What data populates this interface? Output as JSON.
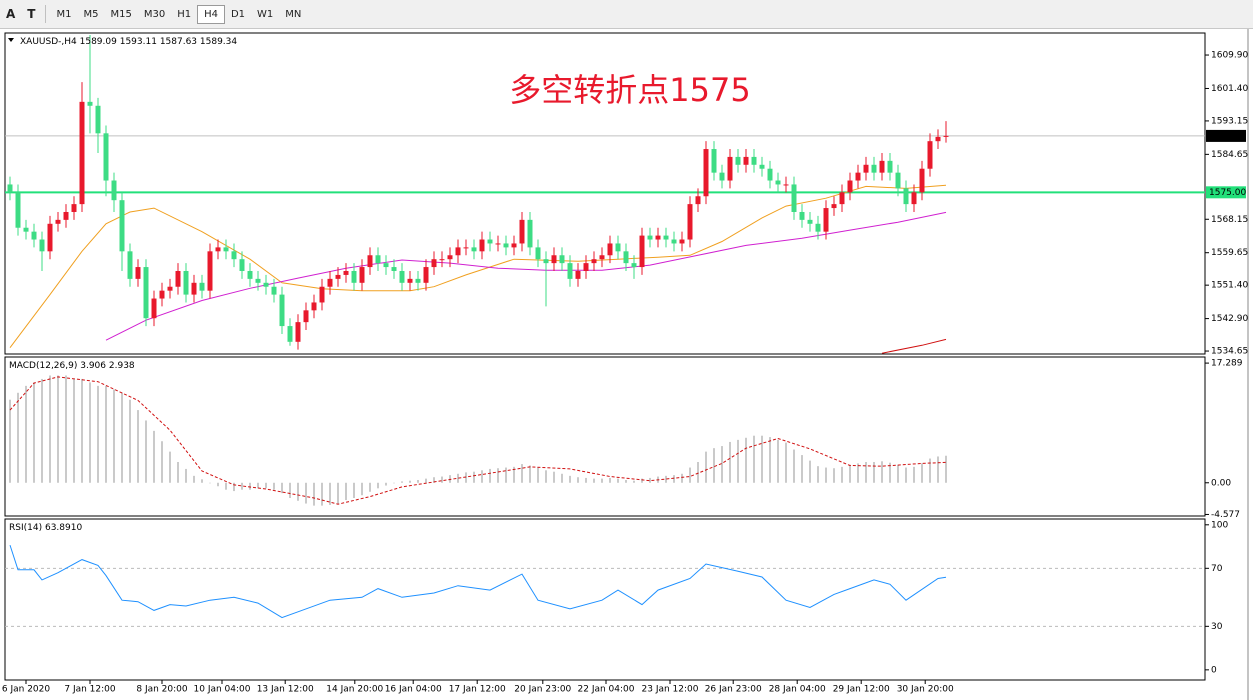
{
  "toolbar": {
    "tools": [
      "A",
      "T"
    ],
    "timeframes": [
      "M1",
      "M5",
      "M15",
      "M30",
      "H1",
      "H4",
      "D1",
      "W1",
      "MN"
    ],
    "active": "H4"
  },
  "chart_data": [
    {
      "type": "candlestick",
      "title": "XAUUSD-,H4",
      "annotation": "多空转折点1575",
      "up_color": "#e8192c",
      "down_color": "#3ddc84",
      "xlim": [
        -0.625,
        149.375
      ],
      "ylim": [
        1533.9,
        1615.5
      ],
      "yticks": [
        {
          "value": 1609.9,
          "label": "1609.90"
        },
        {
          "value": 1601.4,
          "label": "1601.40"
        },
        {
          "value": 1593.15,
          "label": "1593.15"
        },
        {
          "value": 1584.65,
          "label": "1584.65"
        },
        {
          "value": 1568.15,
          "label": "1568.15"
        },
        {
          "value": 1559.65,
          "label": "1559.65"
        },
        {
          "value": 1551.4,
          "label": "1551.40"
        },
        {
          "value": 1542.9,
          "label": "1542.90"
        },
        {
          "value": 1534.65,
          "label": "1534.65"
        }
      ],
      "open": [
        1577,
        1575,
        1566,
        1565,
        1563,
        1560,
        1567,
        1568,
        1570,
        1572,
        1598,
        1597,
        1590,
        1578,
        1573,
        1560,
        1553,
        1556,
        1543,
        1548,
        1550,
        1551,
        1555,
        1549,
        1552,
        1550,
        1560,
        1561,
        1560,
        1558,
        1555,
        1553,
        1552,
        1551,
        1549,
        1541,
        1537,
        1542,
        1545,
        1547,
        1551,
        1553,
        1554,
        1555,
        1552,
        1556,
        1559,
        1557,
        1556,
        1555,
        1552,
        1553,
        1552,
        1556,
        1558,
        1558,
        1559,
        1561,
        1561,
        1560,
        1563,
        1562,
        1562,
        1561,
        1562,
        1568,
        1561,
        1558,
        1557,
        1559,
        1557,
        1553,
        1555,
        1557,
        1558,
        1559,
        1562,
        1560,
        1557,
        1556,
        1564,
        1563,
        1564,
        1563,
        1562,
        1563,
        1572,
        1574,
        1586,
        1580,
        1578,
        1584,
        1582,
        1584,
        1582,
        1581,
        1578,
        1577,
        1577,
        1570,
        1568,
        1567,
        1565,
        1571,
        1572,
        1575,
        1578,
        1580,
        1582,
        1580,
        1583,
        1580,
        1576,
        1572,
        1575,
        1581,
        1588,
        1589.09
      ],
      "high": [
        1579,
        1577,
        1568,
        1567,
        1565,
        1569,
        1570,
        1572,
        1574,
        1603,
        1615,
        1599,
        1592,
        1580,
        1575,
        1562,
        1558,
        1558,
        1550,
        1552,
        1553,
        1557,
        1557,
        1554,
        1554,
        1562,
        1563,
        1563,
        1562,
        1560,
        1557,
        1555,
        1554,
        1553,
        1551,
        1543,
        1544,
        1547,
        1549,
        1553,
        1555,
        1556,
        1557,
        1557,
        1558,
        1561,
        1561,
        1559,
        1558,
        1557,
        1555,
        1555,
        1558,
        1560,
        1560,
        1561,
        1563,
        1563,
        1563,
        1565,
        1565,
        1564,
        1564,
        1564,
        1570,
        1570,
        1563,
        1560,
        1561,
        1561,
        1559,
        1557,
        1559,
        1560,
        1561,
        1564,
        1564,
        1562,
        1559,
        1566,
        1566,
        1566,
        1566,
        1565,
        1565,
        1574,
        1576,
        1588,
        1588,
        1582,
        1586,
        1586,
        1586,
        1586,
        1584,
        1583,
        1580,
        1579,
        1579,
        1572,
        1570,
        1569,
        1573,
        1574,
        1577,
        1580,
        1582,
        1584,
        1584,
        1585,
        1585,
        1582,
        1578,
        1577,
        1583,
        1590,
        1591,
        1593.11
      ],
      "low": [
        1573,
        1564,
        1563,
        1561,
        1555,
        1558,
        1565,
        1566,
        1568,
        1570,
        1590,
        1585,
        1574,
        1570,
        1555,
        1551,
        1551,
        1541,
        1541,
        1546,
        1548,
        1549,
        1547,
        1547,
        1548,
        1548,
        1558,
        1558,
        1556,
        1553,
        1551,
        1550,
        1549,
        1547,
        1539,
        1536,
        1535,
        1540,
        1543,
        1545,
        1549,
        1551,
        1552,
        1550,
        1550,
        1554,
        1555,
        1554,
        1553,
        1550,
        1550,
        1550,
        1550,
        1554,
        1556,
        1556,
        1557,
        1559,
        1558,
        1558,
        1560,
        1560,
        1559,
        1559,
        1560,
        1559,
        1556,
        1546,
        1555,
        1555,
        1551,
        1551,
        1553,
        1555,
        1556,
        1557,
        1558,
        1555,
        1553,
        1554,
        1561,
        1561,
        1561,
        1560,
        1560,
        1561,
        1570,
        1572,
        1578,
        1576,
        1576,
        1580,
        1580,
        1580,
        1579,
        1576,
        1575,
        1575,
        1568,
        1566,
        1565,
        1563,
        1563,
        1569,
        1570,
        1573,
        1576,
        1578,
        1578,
        1578,
        1578,
        1574,
        1570,
        1570,
        1573,
        1579,
        1586,
        1587.63
      ],
      "close": [
        1575,
        1566,
        1565,
        1563,
        1560,
        1567,
        1568,
        1570,
        1572,
        1598,
        1597,
        1590,
        1578,
        1573,
        1560,
        1553,
        1556,
        1543,
        1548,
        1550,
        1551,
        1555,
        1549,
        1552,
        1550,
        1560,
        1561,
        1560,
        1558,
        1555,
        1553,
        1552,
        1551,
        1549,
        1541,
        1537,
        1542,
        1545,
        1547,
        1551,
        1553,
        1554,
        1555,
        1552,
        1556,
        1559,
        1557,
        1556,
        1555,
        1552,
        1553,
        1552,
        1556,
        1558,
        1558,
        1559,
        1561,
        1561,
        1560,
        1563,
        1562,
        1562,
        1561,
        1562,
        1568,
        1561,
        1558,
        1557,
        1559,
        1557,
        1553,
        1555,
        1557,
        1558,
        1559,
        1562,
        1560,
        1557,
        1556,
        1564,
        1563,
        1564,
        1563,
        1562,
        1563,
        1572,
        1574,
        1586,
        1580,
        1578,
        1584,
        1582,
        1584,
        1582,
        1581,
        1578,
        1577,
        1577,
        1570,
        1568,
        1567,
        1565,
        1571,
        1572,
        1575,
        1578,
        1580,
        1582,
        1580,
        1583,
        1580,
        1576,
        1572,
        1575,
        1581,
        1588,
        1589.09,
        1589.34
      ],
      "series": [
        {
          "color": "#f0a020",
          "x": [
            0,
            5,
            9,
            12,
            15,
            18,
            24,
            30,
            34,
            39,
            44,
            50,
            53,
            57,
            63,
            71,
            76,
            81,
            85,
            89,
            94,
            97,
            102,
            107,
            112,
            117
          ],
          "values": [
            1535.5,
            1549,
            1560,
            1567,
            1570,
            1571,
            1565,
            1558,
            1552,
            1550.5,
            1550,
            1550,
            1551,
            1554,
            1558,
            1557.5,
            1558,
            1558.5,
            1559,
            1562.5,
            1568.5,
            1571.5,
            1573.5,
            1576.5,
            1576,
            1576.8
          ]
        },
        {
          "color": "#d020d0",
          "x": [
            12,
            17,
            24,
            30,
            36,
            42,
            49,
            55,
            61,
            67,
            74,
            80,
            86,
            92,
            99,
            105,
            111,
            117
          ],
          "values": [
            1537.4,
            1542.5,
            1547.5,
            1550.6,
            1553.2,
            1555.7,
            1557.8,
            1557,
            1555.7,
            1555.2,
            1555.2,
            1556.5,
            1559,
            1561.5,
            1563.3,
            1565.4,
            1567.4,
            1569.9
          ]
        },
        {
          "color": "#d01010",
          "x": [
            109,
            114,
            117
          ],
          "values": [
            1534.1,
            1536.1,
            1537.6
          ]
        }
      ],
      "hline": {
        "value": 1575,
        "label": "1575.00",
        "color": "#22e07a"
      }
    },
    {
      "type": "macd",
      "title": "MACD(12,26,9)",
      "xlim": [
        -0.625,
        149.375
      ],
      "ylim": [
        -4.8,
        18.17
      ],
      "yticks": [
        17.289,
        {
          "value": 0,
          "label": "0.00"
        },
        -4.577
      ],
      "histogram": {
        "color": "#b8b8b8",
        "values": [
          12,
          13,
          14,
          14.5,
          15,
          15.5,
          15.5,
          15.5,
          15,
          15,
          14.5,
          14,
          14,
          13.5,
          13,
          12,
          10.5,
          9,
          7.5,
          6,
          4.5,
          3,
          2,
          1,
          0.5,
          0,
          -0.5,
          -1,
          -1.2,
          -1,
          -1,
          -0.8,
          -0.8,
          -1,
          -1.5,
          -2.2,
          -2.6,
          -3,
          -3.3,
          -3.3,
          -3.2,
          -3,
          -2.5,
          -2.2,
          -1.8,
          -1.3,
          -0.8,
          -0.4,
          0,
          0.2,
          0.3,
          0.4,
          0.6,
          0.8,
          0.9,
          1.1,
          1.3,
          1.5,
          1.6,
          1.8,
          2,
          2.1,
          2.2,
          2.3,
          2.7,
          2.5,
          2.2,
          1.8,
          1.6,
          1.3,
          1,
          0.8,
          0.7,
          0.6,
          0.6,
          0.7,
          0.6,
          0.4,
          0.3,
          0.6,
          0.7,
          0.9,
          1,
          1.1,
          1.3,
          2.2,
          3,
          4.5,
          5,
          5.3,
          5.9,
          6.2,
          6.5,
          6.8,
          6.8,
          6.6,
          6.2,
          5.8,
          4.8,
          4,
          3.2,
          2.4,
          2.2,
          2.1,
          2.3,
          2.6,
          2.8,
          3,
          3,
          3.1,
          2.9,
          2.6,
          2.2,
          2.3,
          2.8,
          3.5,
          3.8,
          3.906
        ]
      },
      "series": [
        {
          "color": "#d01010",
          "dashed": true,
          "x": [
            0,
            3,
            6,
            11,
            16,
            20,
            24,
            28,
            32,
            38,
            41,
            45,
            49,
            54,
            59,
            65,
            70,
            75,
            80,
            85,
            89,
            92,
            96,
            100,
            105,
            109,
            114,
            117
          ],
          "values": [
            10.5,
            14.4,
            15.3,
            14.6,
            11.9,
            7.6,
            1.7,
            -0.3,
            -0.9,
            -2.2,
            -3.1,
            -2,
            -0.6,
            0.3,
            1.2,
            2.3,
            2,
            0.9,
            0.3,
            0.9,
            2.8,
            5,
            6.4,
            4.9,
            2.5,
            2.4,
            2.8,
            2.938
          ]
        }
      ]
    },
    {
      "type": "line",
      "title": "RSI(14)",
      "legend_value": "63.8910",
      "xlim": [
        -0.625,
        149.375
      ],
      "ylim": [
        -7,
        104
      ],
      "yticks": [
        100,
        70,
        30,
        0
      ],
      "levels": [
        70,
        30
      ],
      "xticks": [
        {
          "value": 2,
          "label": "6 Jan 2020"
        },
        {
          "value": 10,
          "label": "7 Jan 12:00"
        },
        {
          "value": 19,
          "label": "8 Jan 20:00"
        },
        {
          "value": 26.5,
          "label": "10 Jan 04:00"
        },
        {
          "value": 34.4,
          "label": "13 Jan 12:00"
        },
        {
          "value": 43.1,
          "label": "14 Jan 20:00"
        },
        {
          "value": 50.4,
          "label": "16 Jan 04:00"
        },
        {
          "value": 58.4,
          "label": "17 Jan 12:00"
        },
        {
          "value": 66.6,
          "label": "20 Jan 23:00"
        },
        {
          "value": 74.5,
          "label": "22 Jan 04:00"
        },
        {
          "value": 82.5,
          "label": "23 Jan 12:00"
        },
        {
          "value": 90.4,
          "label": "26 Jan 23:00"
        },
        {
          "value": 98.4,
          "label": "28 Jan 04:00"
        },
        {
          "value": 106.4,
          "label": "29 Jan 12:00"
        },
        {
          "value": 114.4,
          "label": "30 Jan 20:00"
        }
      ],
      "series": [
        {
          "color": "#1e90ff",
          "x": [
            0,
            1,
            3,
            4,
            6,
            9,
            11,
            12,
            14,
            16,
            18,
            20,
            22,
            25,
            28,
            31,
            34,
            36,
            40,
            44,
            46,
            49,
            53,
            56,
            60,
            64,
            66,
            70,
            74,
            76,
            79,
            81,
            85,
            87,
            91,
            94,
            97,
            100,
            103,
            105,
            108,
            110,
            112,
            116,
            117
          ],
          "values": [
            86,
            69,
            69,
            62,
            67,
            76,
            72,
            65,
            48,
            47,
            41,
            45,
            44,
            48,
            50,
            46,
            36,
            40,
            48,
            50,
            56,
            50,
            53,
            58,
            55,
            66,
            48,
            42,
            48,
            55,
            45,
            55,
            63,
            73,
            68,
            64,
            48,
            43,
            52,
            56,
            62,
            59,
            48,
            63,
            63.891
          ]
        }
      ]
    }
  ]
}
